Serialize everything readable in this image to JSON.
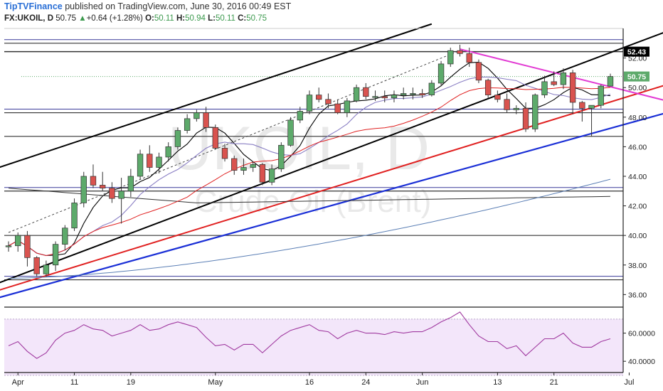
{
  "header": {
    "publisher": "TipTVFinance",
    "published_text": " published on TradingView.com, June 30, 2016 00:49 EST",
    "symbol": "FX:UKOIL, D",
    "last": "50.75",
    "change": "+0.64 (+1.28%)",
    "o_label": "O:",
    "o_value": "50.11",
    "h_label": "H:",
    "h_value": "50.94",
    "l_label": "L:",
    "l_value": "50.11",
    "c_label": "C:",
    "c_value": "50.75"
  },
  "watermark": {
    "symbol": "UKOIL, D",
    "name": "Crude Oil (Brent)"
  },
  "colors": {
    "up": "#5daa6b",
    "down": "#d9534f",
    "channel": "#000000",
    "trend_red": "#e02020",
    "trend_blue": "#1a2fd6",
    "trend_magenta": "#e23ad3",
    "ma_short": "#000000",
    "ma_mid": "#8a7fc4",
    "ma_long": "#5b7fb5",
    "rsi": "#a03aa0",
    "rsi_band": "#f3e6fa",
    "hline": "#333333",
    "hline_blue": "#3a3a9a",
    "label_bg": "#000000",
    "last_bg": "#5daa6b"
  },
  "chart_data": [
    {
      "type": "candlestick",
      "title": "",
      "x": [
        "Mar 31",
        "Apr 1",
        "Apr 4",
        "Apr 5",
        "Apr 6",
        "Apr 7",
        "Apr 8",
        "Apr 11",
        "Apr 12",
        "Apr 13",
        "Apr 14",
        "Apr 15",
        "Apr 18",
        "Apr 19",
        "Apr 20",
        "Apr 21",
        "Apr 22",
        "Apr 25",
        "Apr 26",
        "Apr 27",
        "Apr 28",
        "Apr 29",
        "May 2",
        "May 3",
        "May 4",
        "May 5",
        "May 6",
        "May 9",
        "May 10",
        "May 11",
        "May 12",
        "May 13",
        "May 16",
        "May 17",
        "May 18",
        "May 19",
        "May 20",
        "May 23",
        "May 24",
        "May 25",
        "May 26",
        "May 27",
        "May 30",
        "May 31",
        "Jun 1",
        "Jun 2",
        "Jun 3",
        "Jun 6",
        "Jun 7",
        "Jun 8",
        "Jun 9",
        "Jun 10",
        "Jun 13",
        "Jun 14",
        "Jun 15",
        "Jun 16",
        "Jun 17",
        "Jun 20",
        "Jun 21",
        "Jun 22",
        "Jun 23",
        "Jun 24",
        "Jun 27",
        "Jun 28",
        "Jun 29"
      ],
      "open": [
        39.3,
        39.3,
        40.0,
        38.5,
        37.4,
        38.0,
        39.4,
        40.5,
        42.2,
        44.0,
        43.4,
        43.2,
        42.5,
        43.0,
        44.0,
        45.5,
        44.6,
        45.3,
        46.0,
        47.1,
        47.9,
        48.3,
        47.3,
        45.9,
        45.2,
        44.4,
        44.6,
        44.8,
        43.6,
        44.5,
        46.1,
        47.8,
        48.4,
        49.5,
        49.2,
        48.9,
        48.3,
        49.1,
        50.0,
        49.4,
        49.4,
        49.3,
        49.5,
        49.6,
        49.6,
        49.5,
        50.3,
        51.6,
        52.5,
        52.3,
        51.7,
        50.5,
        49.5,
        49.2,
        48.5,
        48.6,
        47.2,
        49.5,
        50.4,
        50.2,
        51.0,
        49.0,
        48.6,
        48.8,
        50.1
      ],
      "high": [
        39.6,
        40.2,
        40.3,
        38.6,
        38.3,
        39.6,
        40.7,
        42.5,
        44.3,
        44.8,
        44.3,
        43.6,
        43.9,
        44.5,
        45.8,
        46.1,
        45.6,
        46.3,
        47.3,
        48.2,
        48.5,
        48.7,
        47.5,
        46.2,
        45.4,
        45.2,
        45.0,
        44.9,
        44.8,
        46.3,
        48.0,
        48.7,
        49.8,
        50.0,
        49.6,
        49.2,
        49.3,
        50.2,
        50.3,
        49.8,
        49.8,
        49.8,
        50.0,
        50.0,
        49.9,
        50.5,
        51.8,
        52.7,
        52.9,
        52.7,
        51.9,
        50.6,
        49.8,
        49.6,
        48.8,
        49.0,
        49.6,
        50.8,
        51.1,
        51.3,
        51.2,
        49.1,
        48.7,
        50.2,
        50.94
      ],
      "low": [
        38.9,
        38.9,
        37.9,
        37.2,
        37.2,
        37.6,
        39.0,
        40.3,
        41.9,
        43.2,
        43.0,
        42.2,
        40.8,
        42.6,
        43.8,
        44.3,
        44.2,
        45.0,
        45.8,
        46.9,
        47.7,
        47.0,
        45.8,
        45.0,
        44.1,
        44.1,
        44.3,
        43.4,
        43.4,
        44.3,
        46.0,
        47.6,
        48.2,
        49.0,
        48.6,
        48.2,
        48.0,
        49.0,
        49.2,
        49.1,
        49.0,
        49.0,
        49.2,
        49.2,
        49.3,
        49.4,
        50.1,
        51.4,
        52.1,
        51.4,
        50.3,
        49.3,
        49.0,
        48.3,
        48.2,
        47.0,
        47.0,
        49.3,
        50.1,
        49.9,
        48.2,
        47.7,
        46.7,
        48.6,
        50.11
      ],
      "close": [
        39.3,
        40.0,
        38.5,
        37.4,
        38.0,
        39.4,
        40.5,
        42.2,
        44.0,
        43.4,
        43.2,
        42.5,
        43.0,
        44.0,
        45.5,
        44.6,
        45.3,
        46.0,
        47.1,
        47.9,
        48.3,
        47.3,
        45.9,
        45.2,
        44.4,
        44.6,
        44.8,
        43.6,
        44.5,
        46.1,
        47.8,
        48.4,
        49.5,
        49.2,
        48.9,
        48.3,
        49.1,
        50.0,
        49.4,
        49.4,
        49.3,
        49.5,
        49.6,
        49.6,
        49.5,
        50.3,
        51.6,
        52.5,
        52.3,
        51.7,
        50.5,
        49.5,
        49.2,
        48.5,
        48.6,
        47.2,
        49.5,
        50.4,
        50.2,
        51.0,
        49.0,
        48.6,
        48.8,
        50.1,
        50.75
      ],
      "xtick_labels": [
        "Apr",
        "11",
        "19",
        "May",
        "16",
        "24",
        "Jun",
        "13",
        "21",
        "Jul"
      ],
      "ytick_labels": [
        "36.00",
        "38.00",
        "40.00",
        "42.00",
        "44.00",
        "46.00",
        "48.00",
        "50.00",
        "52.00"
      ],
      "ylim": [
        35.2,
        54.0
      ],
      "hlines": [
        37.0,
        40.0,
        43.0,
        46.7,
        48.3,
        53.0
      ],
      "price_labels": [
        "52.43",
        "50.75"
      ],
      "grid": false
    },
    {
      "type": "line",
      "title": "RSI",
      "values": [
        51,
        54,
        47,
        42,
        46,
        55,
        60,
        62,
        66,
        63,
        62,
        58,
        60,
        62,
        66,
        62,
        63,
        66,
        68,
        66,
        64,
        57,
        51,
        52,
        48,
        52,
        52,
        46,
        52,
        58,
        62,
        64,
        66,
        62,
        61,
        56,
        60,
        62,
        60,
        60,
        59,
        61,
        60,
        61,
        61,
        64,
        68,
        71,
        75,
        66,
        58,
        54,
        54,
        49,
        51,
        44,
        50,
        56,
        56,
        60,
        53,
        50,
        50,
        54,
        56
      ],
      "ytick_labels": [
        "40.0000",
        "60.0000"
      ],
      "ylim": [
        32,
        78
      ],
      "band": [
        30,
        70
      ],
      "grid": false
    }
  ]
}
